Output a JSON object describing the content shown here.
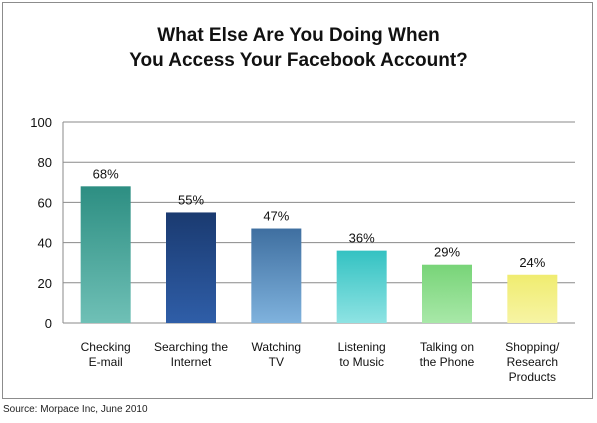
{
  "chart_data": {
    "type": "bar",
    "title_lines": [
      "What Else Are You Doing When",
      "You Access Your Facebook Account?"
    ],
    "categories": [
      [
        "Checking",
        "E-mail"
      ],
      [
        "Searching the",
        "Internet"
      ],
      [
        "Watching",
        "TV"
      ],
      [
        "Listening",
        "to Music"
      ],
      [
        "Talking on",
        "the Phone"
      ],
      [
        "Shopping/",
        "Research",
        "Products"
      ]
    ],
    "values": [
      68,
      55,
      47,
      36,
      29,
      24
    ],
    "value_labels": [
      "68%",
      "55%",
      "47%",
      "36%",
      "29%",
      "24%"
    ],
    "bar_colors": [
      [
        "#2d8e82",
        "#6fc0b6"
      ],
      [
        "#1a3a70",
        "#2f5ea8"
      ],
      [
        "#3f6fa0",
        "#7fb2dd"
      ],
      [
        "#34c2c2",
        "#8ee3e3"
      ],
      [
        "#78d478",
        "#a8e8a8"
      ],
      [
        "#f0ec70",
        "#f7f4a4"
      ]
    ],
    "ylim": [
      0,
      100
    ],
    "yticks": [
      0,
      20,
      40,
      60,
      80,
      100
    ],
    "grid": true,
    "xlabel": "",
    "ylabel": ""
  },
  "source": "Source: Morpace Inc, June 2010"
}
